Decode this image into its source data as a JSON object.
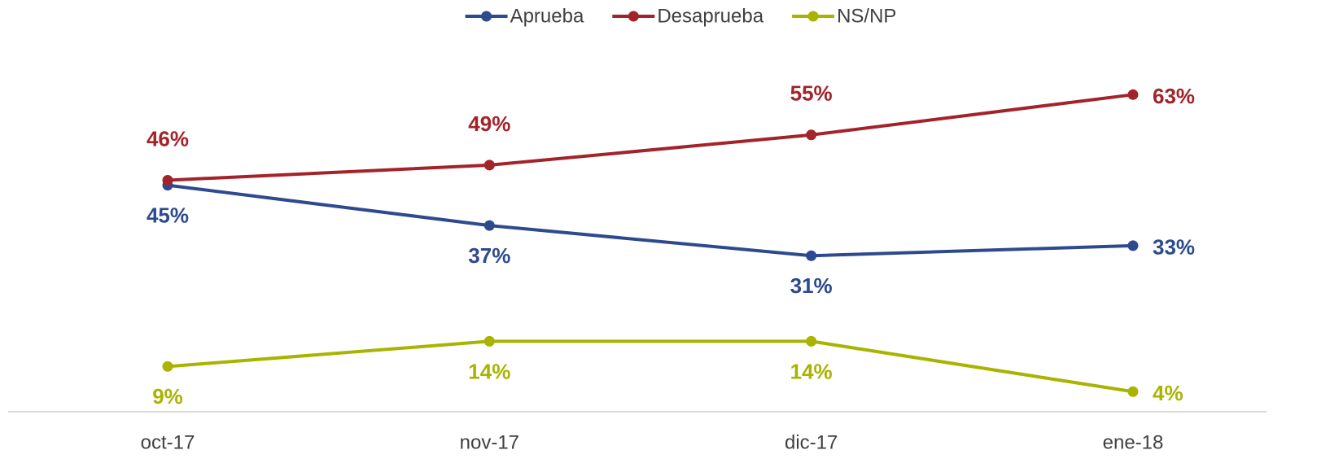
{
  "chart_data": {
    "type": "line",
    "categories": [
      "oct-17",
      "nov-17",
      "dic-17",
      "ene-18"
    ],
    "series": [
      {
        "name": "Aprueba",
        "color": "#2e4a8e",
        "values": [
          45,
          37,
          31,
          33
        ],
        "value_labels": [
          "45%",
          "37%",
          "31%",
          "33%"
        ]
      },
      {
        "name": "Desaprueba",
        "color": "#a3232a",
        "values": [
          46,
          49,
          55,
          63
        ],
        "value_labels": [
          "46%",
          "49%",
          "55%",
          "63%"
        ]
      },
      {
        "name": "NS/NP",
        "color": "#a8b400",
        "values": [
          9,
          14,
          14,
          4
        ],
        "value_labels": [
          "9%",
          "14%",
          "14%",
          "4%"
        ]
      }
    ],
    "ylim": [
      0,
      70
    ],
    "legend": "top"
  }
}
